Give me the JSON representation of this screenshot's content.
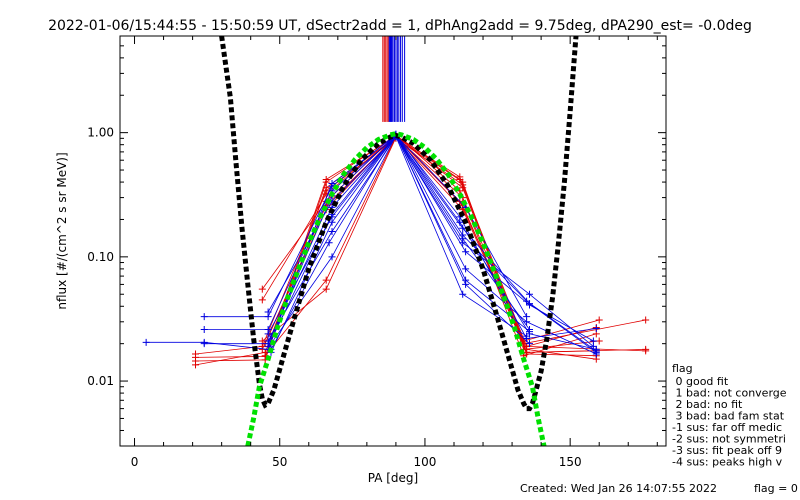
{
  "chart_data": {
    "type": "scatter",
    "title": "2022-01-06/15:44:55 - 15:50:59 UT, dSectr2add = 1, dPhAng2add = 9.75deg, dPA290_est=  -0.0deg",
    "xlabel": "PA [deg]",
    "ylabel": "nflux [#/(cm^2 s sr MeV)]",
    "xlim": [
      -5,
      183
    ],
    "ylim": [
      0.003,
      6.0
    ],
    "yscale": "log",
    "x_ticks": [
      0,
      50,
      100,
      150
    ],
    "x_tick_labels": [
      "0",
      "50",
      "100",
      "150"
    ],
    "y_ticks": [
      0.01,
      0.1,
      1.0
    ],
    "y_tick_labels": [
      "0.01",
      "0.10",
      "1.00"
    ],
    "grid": false,
    "colors": {
      "red": "#e00000",
      "blue": "#0000e0",
      "black": "#000000",
      "green": "#00e000"
    },
    "series": [
      {
        "color": "red",
        "role": "red-traces",
        "lines": [
          [
            [
              21,
              0.0155
            ],
            [
              45,
              0.0158
            ],
            [
              66,
              0.42
            ],
            [
              90,
              0.93
            ],
            [
              112,
              0.44
            ],
            [
              135,
              0.017
            ],
            [
              159,
              0.0175
            ]
          ],
          [
            [
              21,
              0.0145
            ],
            [
              45,
              0.0148
            ],
            [
              66,
              0.4
            ],
            [
              90,
              0.95
            ],
            [
              112,
              0.42
            ],
            [
              135,
              0.0165
            ],
            [
              159,
              0.016
            ]
          ],
          [
            [
              21,
              0.0135
            ],
            [
              45,
              0.017
            ],
            [
              66,
              0.36
            ],
            [
              90,
              0.92
            ],
            [
              113,
              0.4
            ],
            [
              134,
              0.018
            ],
            [
              160,
              0.021
            ]
          ],
          [
            [
              21,
              0.0165
            ],
            [
              44,
              0.019
            ],
            [
              66,
              0.34
            ],
            [
              90,
              0.9
            ],
            [
              113,
              0.38
            ],
            [
              135,
              0.019
            ],
            [
              159,
              0.027
            ]
          ],
          [
            [
              44,
              0.045
            ],
            [
              66,
              0.32
            ],
            [
              90,
              0.94
            ],
            [
              113,
              0.36
            ],
            [
              134,
              0.021
            ],
            [
              160,
              0.031
            ]
          ],
          [
            [
              44,
              0.055
            ],
            [
              66,
              0.28
            ],
            [
              90,
              0.96
            ],
            [
              112,
              0.34
            ],
            [
              135,
              0.018
            ],
            [
              159,
              0.015
            ]
          ],
          [
            [
              45,
              0.02
            ],
            [
              66,
              0.26
            ],
            [
              90,
              0.92
            ],
            [
              113,
              0.3
            ],
            [
              134,
              0.016
            ],
            [
              159,
              0.024
            ]
          ],
          [
            [
              44,
              0.018
            ],
            [
              66,
              0.24
            ],
            [
              90,
              0.95
            ],
            [
              112,
              0.28
            ],
            [
              135,
              0.019
            ],
            [
              176,
              0.0175
            ]
          ],
          [
            [
              45,
              0.016
            ],
            [
              66,
              0.065
            ],
            [
              90,
              0.93
            ],
            [
              113,
              0.26
            ],
            [
              135,
              0.017
            ],
            [
              176,
              0.018
            ]
          ],
          [
            [
              44,
              0.021
            ],
            [
              66,
              0.055
            ],
            [
              90,
              0.91
            ],
            [
              113,
              0.24
            ],
            [
              134,
              0.02
            ],
            [
              176,
              0.031
            ]
          ]
        ]
      },
      {
        "color": "blue",
        "role": "blue-traces",
        "lines": [
          [
            [
              4,
              0.0205
            ],
            [
              24,
              0.0205
            ],
            [
              46,
              0.018
            ],
            [
              68,
              0.39
            ],
            [
              90,
              0.95
            ],
            [
              112,
              0.21
            ],
            [
              135,
              0.022
            ],
            [
              159,
              0.0265
            ]
          ],
          [
            [
              24,
              0.033
            ],
            [
              46,
              0.033
            ],
            [
              68,
              0.37
            ],
            [
              90,
              0.97
            ],
            [
              112,
              0.19
            ],
            [
              136,
              0.024
            ],
            [
              159,
              0.018
            ]
          ],
          [
            [
              24,
              0.026
            ],
            [
              46,
              0.026
            ],
            [
              68,
              0.34
            ],
            [
              90,
              0.93
            ],
            [
              113,
              0.17
            ],
            [
              136,
              0.042
            ],
            [
              159,
              0.017
            ]
          ],
          [
            [
              24,
              0.02
            ],
            [
              46,
              0.02
            ],
            [
              68,
              0.31
            ],
            [
              90,
              0.96
            ],
            [
              113,
              0.15
            ],
            [
              135,
              0.044
            ],
            [
              159,
              0.0175
            ]
          ],
          [
            [
              46,
              0.036
            ],
            [
              68,
              0.28
            ],
            [
              90,
              0.92
            ],
            [
              113,
              0.13
            ],
            [
              136,
              0.05
            ],
            [
              158,
              0.019
            ]
          ],
          [
            [
              47,
              0.023
            ],
            [
              68,
              0.25
            ],
            [
              90,
              0.94
            ],
            [
              114,
              0.11
            ],
            [
              136,
              0.041
            ],
            [
              158,
              0.021
            ]
          ],
          [
            [
              46,
              0.019
            ],
            [
              68,
              0.22
            ],
            [
              90,
              0.97
            ],
            [
              114,
              0.08
            ],
            [
              135,
              0.03
            ],
            [
              159,
              0.0165
            ]
          ],
          [
            [
              47,
              0.017
            ],
            [
              68,
              0.19
            ],
            [
              90,
              0.95
            ],
            [
              114,
              0.065
            ],
            [
              136,
              0.025
            ]
          ],
          [
            [
              46,
              0.021
            ],
            [
              68,
              0.16
            ],
            [
              90,
              0.93
            ],
            [
              113,
              0.05
            ],
            [
              135,
              0.023
            ]
          ],
          [
            [
              47,
              0.018
            ],
            [
              67,
              0.13
            ],
            [
              90,
              0.96
            ],
            [
              114,
              0.06
            ],
            [
              136,
              0.02
            ]
          ],
          [
            [
              47,
              0.02
            ],
            [
              68,
              0.1
            ],
            [
              90,
              0.94
            ],
            [
              113,
              0.14
            ],
            [
              136,
              0.026
            ]
          ],
          [
            [
              46,
              0.024
            ],
            [
              68,
              0.21
            ],
            [
              90,
              0.95
            ],
            [
              114,
              0.25
            ],
            [
              135,
              0.033
            ]
          ]
        ]
      },
      {
        "color": "black",
        "role": "black-dashed-curve",
        "points": [
          [
            30,
            6.0
          ],
          [
            33,
            1.9
          ],
          [
            35,
            0.55
          ],
          [
            37,
            0.17
          ],
          [
            39,
            0.06
          ],
          [
            41,
            0.022
          ],
          [
            43,
            0.0095
          ],
          [
            44,
            0.0072
          ],
          [
            45,
            0.0064
          ],
          [
            46,
            0.0066
          ],
          [
            48,
            0.0085
          ],
          [
            51,
            0.015
          ],
          [
            55,
            0.032
          ],
          [
            60,
            0.08
          ],
          [
            66,
            0.19
          ],
          [
            72,
            0.37
          ],
          [
            78,
            0.6
          ],
          [
            84,
            0.82
          ],
          [
            88,
            0.92
          ],
          [
            90,
            0.95
          ],
          [
            92,
            0.92
          ],
          [
            96,
            0.82
          ],
          [
            102,
            0.6
          ],
          [
            108,
            0.37
          ],
          [
            114,
            0.19
          ],
          [
            120,
            0.08
          ],
          [
            125,
            0.032
          ],
          [
            129,
            0.015
          ],
          [
            132,
            0.0085
          ],
          [
            134,
            0.0066
          ],
          [
            135,
            0.006
          ],
          [
            136,
            0.006
          ],
          [
            137,
            0.0066
          ],
          [
            138,
            0.008
          ],
          [
            140,
            0.012
          ],
          [
            142,
            0.022
          ],
          [
            144,
            0.048
          ],
          [
            146,
            0.13
          ],
          [
            148,
            0.4
          ],
          [
            150,
            1.5
          ],
          [
            152,
            6.0
          ]
        ]
      },
      {
        "color": "green",
        "role": "green-dashed-curve",
        "points": [
          [
            39,
            0.003
          ],
          [
            41,
            0.005
          ],
          [
            43,
            0.009
          ],
          [
            46,
            0.015
          ],
          [
            49,
            0.026
          ],
          [
            52,
            0.042
          ],
          [
            56,
            0.075
          ],
          [
            60,
            0.13
          ],
          [
            64,
            0.21
          ],
          [
            68,
            0.32
          ],
          [
            72,
            0.46
          ],
          [
            76,
            0.61
          ],
          [
            80,
            0.76
          ],
          [
            84,
            0.88
          ],
          [
            88,
            0.96
          ],
          [
            90,
            0.98
          ],
          [
            92,
            0.96
          ],
          [
            96,
            0.88
          ],
          [
            100,
            0.76
          ],
          [
            104,
            0.61
          ],
          [
            108,
            0.46
          ],
          [
            112,
            0.32
          ],
          [
            116,
            0.21
          ],
          [
            120,
            0.13
          ],
          [
            124,
            0.075
          ],
          [
            128,
            0.042
          ],
          [
            131,
            0.026
          ],
          [
            134,
            0.015
          ],
          [
            137,
            0.009
          ],
          [
            139,
            0.005
          ],
          [
            141,
            0.003
          ]
        ]
      }
    ],
    "vertical_lines": [
      {
        "color": "red",
        "x": [
          85.5,
          86.0,
          86.5,
          87.0,
          87.5
        ]
      },
      {
        "color": "blue",
        "x": [
          87.7,
          88.0,
          88.3,
          88.6,
          89.0,
          89.5,
          90.0,
          90.5,
          91.0,
          91.6,
          92.2,
          93.0
        ]
      }
    ],
    "legend": {
      "title": "flag",
      "position": "right",
      "entries": [
        " 0 good fit",
        " 1 bad: not converge",
        " 2 bad: no fit",
        " 3 bad: bad fam stat",
        "-1 sus: far off medic",
        "-2 sus: not symmetri",
        "-3 sus: fit peak off 9",
        "-4 sus: peaks high v"
      ]
    },
    "footer": {
      "created": "Created: Wed Jan 26 14:07:55 2022",
      "flag": "flag = 0"
    }
  }
}
